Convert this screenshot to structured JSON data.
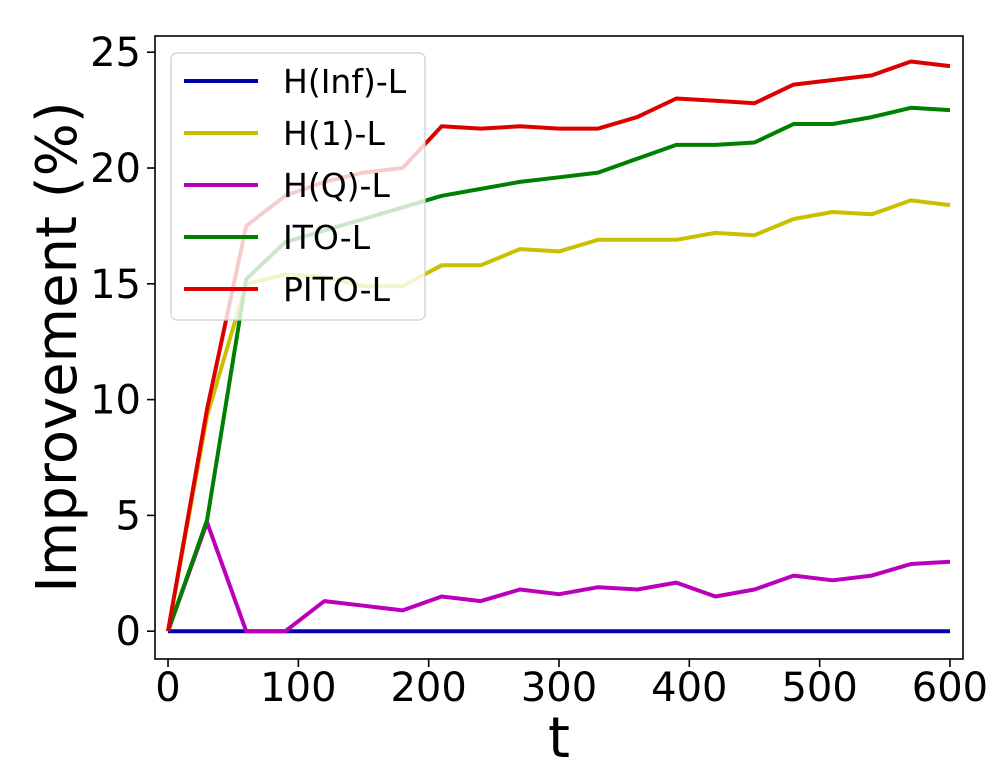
{
  "chart_data": {
    "type": "line",
    "title": "",
    "xlabel": "t",
    "ylabel": "Improvement (%)",
    "xlim": [
      -10,
      610
    ],
    "ylim": [
      -1.2,
      25.7
    ],
    "grid": false,
    "legend_position": "top-left",
    "x_ticks": [
      0,
      100,
      200,
      300,
      400,
      500,
      600
    ],
    "y_ticks": [
      0,
      5,
      10,
      15,
      20,
      25
    ],
    "x": [
      0,
      30,
      60,
      90,
      120,
      150,
      180,
      210,
      240,
      270,
      300,
      330,
      360,
      390,
      420,
      450,
      480,
      510,
      540,
      570,
      600
    ],
    "series": [
      {
        "name": "H(Inf)-L",
        "color": "#0000aa",
        "values": [
          0,
          0,
          0,
          0,
          0,
          0,
          0,
          0,
          0,
          0,
          0,
          0,
          0,
          0,
          0,
          0,
          0,
          0,
          0,
          0,
          0
        ]
      },
      {
        "name": "H(1)-L",
        "color": "#c8c000",
        "values": [
          0,
          9.3,
          15.0,
          15.4,
          15.3,
          14.9,
          14.9,
          15.8,
          15.8,
          16.5,
          16.4,
          16.9,
          16.9,
          16.9,
          17.2,
          17.1,
          17.8,
          18.1,
          18.0,
          18.6,
          18.4
        ]
      },
      {
        "name": "H(Q)-L",
        "color": "#bb00bb",
        "values": [
          0,
          4.7,
          0,
          0,
          1.3,
          1.1,
          0.9,
          1.5,
          1.3,
          1.8,
          1.6,
          1.9,
          1.8,
          2.1,
          1.5,
          1.8,
          2.4,
          2.2,
          2.4,
          2.9,
          3.0
        ]
      },
      {
        "name": "ITO-L",
        "color": "#008000",
        "values": [
          0,
          4.8,
          15.2,
          16.8,
          17.3,
          17.8,
          18.3,
          18.8,
          19.1,
          19.4,
          19.6,
          19.8,
          20.4,
          21.0,
          21.0,
          21.1,
          21.9,
          21.9,
          22.2,
          22.6,
          22.5
        ]
      },
      {
        "name": "PITO-L",
        "color": "#dd0000",
        "values": [
          0,
          9.6,
          17.5,
          18.8,
          19.4,
          19.8,
          20.0,
          21.8,
          21.7,
          21.8,
          21.7,
          21.7,
          22.2,
          23.0,
          22.9,
          22.8,
          23.6,
          23.8,
          24.0,
          24.6,
          24.4
        ]
      }
    ]
  }
}
